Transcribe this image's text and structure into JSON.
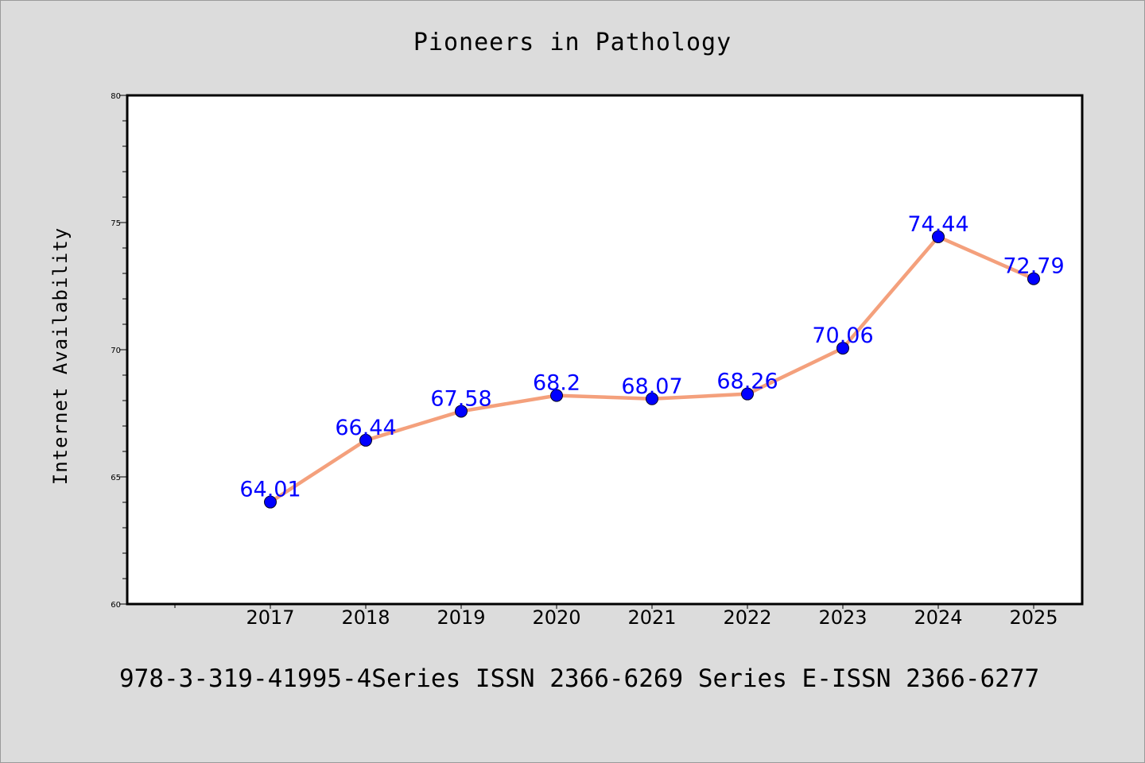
{
  "chart_data": {
    "type": "line",
    "title": "Pioneers in Pathology",
    "xlabel": "",
    "ylabel": "Internet Availability",
    "categories": [
      "2017",
      "2018",
      "2019",
      "2020",
      "2021",
      "2022",
      "2023",
      "2024",
      "2025"
    ],
    "series": [
      {
        "values": [
          64.01,
          66.44,
          67.58,
          68.2,
          68.07,
          68.26,
          70.06,
          74.44,
          72.79
        ],
        "labels": [
          "64.01",
          "66.44",
          "67.58",
          "68.2",
          "68.07",
          "68.26",
          "70.06",
          "74.44",
          "72.79"
        ],
        "line_color": "#f4a07c",
        "marker_color": "#0000ff",
        "label_color": "#0000ff"
      }
    ],
    "ylim": [
      60,
      80
    ],
    "yticks": [
      60,
      65,
      70,
      75,
      80
    ],
    "ytick_labels": [
      "60",
      "65",
      "70",
      "75",
      "80"
    ],
    "grid": false,
    "legend": "none"
  },
  "footer": "978-3-319-41995-4Series ISSN 2366-6269 Series E-ISSN 2366-6277",
  "colors": {
    "background": "#dcdcdc",
    "plot_background": "#ffffff"
  }
}
